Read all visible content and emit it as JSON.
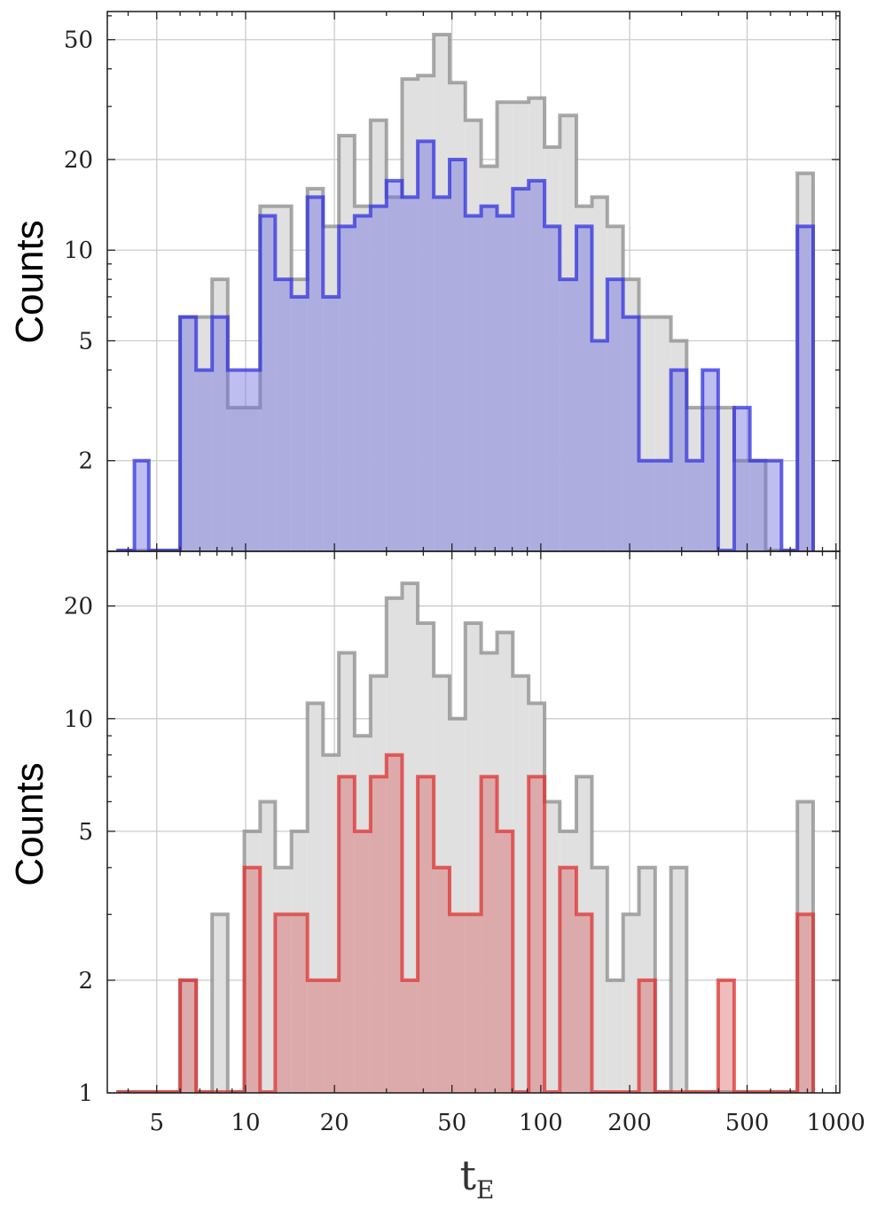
{
  "chart_data": [
    {
      "type": "histogram",
      "panel": "top",
      "ylabel": "Counts",
      "y_scale": "log",
      "x_scale": "log",
      "ylim": [
        1,
        62
      ],
      "y_ticks": [
        {
          "value": 2,
          "label": "2"
        },
        {
          "value": 5,
          "label": "5"
        },
        {
          "value": 10,
          "label": "10"
        },
        {
          "value": 20,
          "label": "20"
        },
        {
          "value": 50,
          "label": "50"
        }
      ],
      "grid": true,
      "bin_edges": [
        3.7,
        4.2,
        4.7,
        5.3,
        6.0,
        6.8,
        7.7,
        8.7,
        9.9,
        11.2,
        12.6,
        14.3,
        16.2,
        18.3,
        20.7,
        23.4,
        26.5,
        30.0,
        33.9,
        38.3,
        43.4,
        49.1,
        55.5,
        62.8,
        71.1,
        80.4,
        91.0,
        103,
        116,
        132,
        149,
        168,
        190,
        215,
        244,
        276,
        312,
        353,
        399,
        452,
        511,
        578,
        654,
        740,
        837
      ],
      "series": [
        {
          "name": "",
          "color": "#8c8c8c",
          "fill": "#e0e0e0",
          "values": [
            1,
            1,
            1,
            1,
            6,
            6,
            8,
            3,
            3,
            14,
            14,
            8,
            16,
            12,
            24,
            14,
            27,
            15,
            37,
            38,
            52,
            36,
            27,
            19,
            31,
            31,
            32,
            22,
            28,
            14,
            15,
            12,
            8,
            6,
            6,
            5,
            3,
            3,
            3,
            2,
            2,
            1,
            1,
            18
          ]
        },
        {
          "name": "",
          "color": "#3333dd",
          "fill": "rgba(110,110,225,0.45)",
          "values": [
            1,
            2,
            1,
            1,
            6,
            4,
            6,
            4,
            4,
            13,
            8,
            7,
            15,
            7,
            12,
            13,
            14,
            17,
            15,
            23,
            15,
            20,
            13,
            14,
            13,
            16,
            17,
            12,
            8,
            12,
            5,
            8,
            6,
            2,
            2,
            4,
            2,
            4,
            1,
            3,
            2,
            2,
            1,
            12
          ]
        }
      ]
    },
    {
      "type": "histogram",
      "panel": "bottom",
      "ylabel": "Counts",
      "xlabel": "t",
      "xlabel_sub": "E",
      "y_scale": "log",
      "x_scale": "log",
      "ylim": [
        1,
        28
      ],
      "xlim": [
        3.4,
        1030
      ],
      "x_ticks": [
        {
          "value": 5,
          "label": "5"
        },
        {
          "value": 10,
          "label": "10"
        },
        {
          "value": 20,
          "label": "20"
        },
        {
          "value": 50,
          "label": "50"
        },
        {
          "value": 100,
          "label": "100"
        },
        {
          "value": 200,
          "label": "200"
        },
        {
          "value": 500,
          "label": "500"
        },
        {
          "value": 1000,
          "label": "1000"
        }
      ],
      "y_ticks": [
        {
          "value": 1,
          "label": "1"
        },
        {
          "value": 2,
          "label": "2"
        },
        {
          "value": 5,
          "label": "5"
        },
        {
          "value": 10,
          "label": "10"
        },
        {
          "value": 20,
          "label": "20"
        }
      ],
      "grid": true,
      "bin_edges": [
        3.7,
        4.2,
        4.7,
        5.3,
        6.0,
        6.8,
        7.7,
        8.7,
        9.9,
        11.2,
        12.6,
        14.3,
        16.2,
        18.3,
        20.7,
        23.4,
        26.5,
        30.0,
        33.9,
        38.3,
        43.4,
        49.1,
        55.5,
        62.8,
        71.1,
        80.4,
        91.0,
        103,
        116,
        132,
        149,
        168,
        190,
        215,
        244,
        276,
        312,
        353,
        399,
        452,
        511,
        578,
        654,
        740,
        837
      ],
      "series": [
        {
          "name": "",
          "color": "#8c8c8c",
          "fill": "#e0e0e0",
          "values": [
            1,
            1,
            1,
            1,
            2,
            1,
            3,
            1,
            5,
            6,
            4,
            5,
            11,
            8,
            15,
            9,
            13,
            21,
            23,
            18,
            13,
            10,
            18,
            15,
            17,
            13,
            11,
            6,
            5,
            7,
            4,
            2,
            3,
            4,
            1,
            4,
            1,
            1,
            1,
            1,
            1,
            1,
            1,
            6
          ]
        },
        {
          "name": "",
          "color": "#dd3333",
          "fill": "rgba(215,90,90,0.4)",
          "values": [
            1,
            1,
            1,
            1,
            2,
            1,
            1,
            1,
            4,
            1,
            3,
            3,
            2,
            2,
            7,
            5,
            7,
            8,
            2,
            7,
            4,
            3,
            3,
            7,
            5,
            1,
            7,
            1,
            4,
            3,
            1,
            1,
            1,
            2,
            1,
            1,
            1,
            1,
            2,
            1,
            1,
            1,
            1,
            3
          ]
        }
      ]
    }
  ]
}
